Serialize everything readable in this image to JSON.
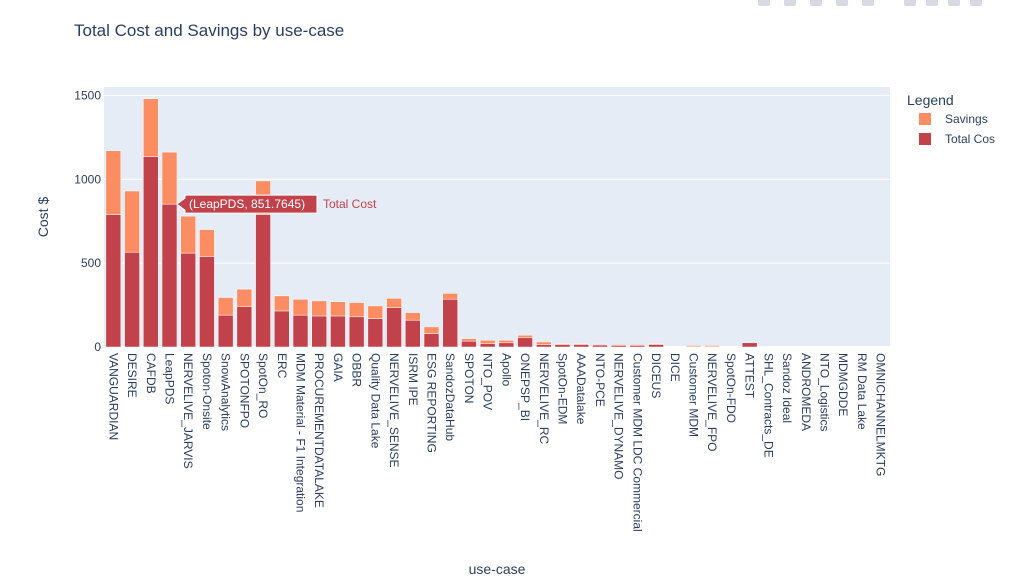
{
  "toolbar": {
    "icons": [
      "camera-icon",
      "zoom-icon",
      "pan-icon",
      "box-select-icon",
      "lasso-icon",
      "zoom-in-icon",
      "zoom-out-icon",
      "autoscale-icon",
      "reset-axes-icon"
    ]
  },
  "chart_data": {
    "type": "bar",
    "barmode": "stack",
    "title": "Total Cost and Savings by use-case",
    "xlabel": "use-case",
    "ylabel": "Cost $",
    "ylim": [
      0,
      1550
    ],
    "yticks": [
      0,
      500,
      1000,
      1500
    ],
    "ytick_labels": [
      "0",
      "500",
      "1000",
      "1500"
    ],
    "grid": true,
    "legend": {
      "title": "Legend",
      "position": "right"
    },
    "categories": [
      "VANGUARDIAN",
      "DESIRE",
      "CAFDB",
      "LeapPDS",
      "NERVELIVE_JARVIS",
      "Spoton-Onsite",
      "SnowAnalytics",
      "SPOTONFPO",
      "SpotOn_RO",
      "ERC",
      "MDM Material - F1 Integration",
      "PROCUREMENTDATALAKE",
      "GAIA",
      "OBBR",
      "Quality Data Lake",
      "NERVELIVE_SENSE",
      "ISRM IPE",
      "ESG REPORTING",
      "SandozDataHub",
      "SPOTON",
      "NTO_POV",
      "Apollo",
      "ONEPSP_BI",
      "NERVELIVE_RC",
      "SpotOn-EDM",
      "AAADatalake",
      "NTO-PCE",
      "NERVELIVE_DYNAMO",
      "Customer MDM LDC Commercial",
      "DICEUS",
      "DICE",
      "Customer MDM",
      "NERVELIVE_FPO",
      "SpotOn-FDO",
      "ATTEST",
      "SHL_Contracts_DE",
      "Sandoz Ideal",
      "ANDROMEDA",
      "NTO_Logistics",
      "MDMGDDE",
      "RM Data Lake",
      "OMNICHANNELMKTG"
    ],
    "series": [
      {
        "name": "Total Cos",
        "color": "#c1424b",
        "values": [
          790,
          565,
          1135,
          851.7645,
          560,
          540,
          190,
          240,
          790,
          215,
          190,
          185,
          185,
          180,
          170,
          235,
          160,
          80,
          285,
          35,
          20,
          25,
          55,
          15,
          15,
          15,
          12,
          10,
          10,
          15,
          0,
          5,
          5,
          0,
          25,
          0,
          0,
          0,
          0,
          0,
          0,
          0
        ]
      },
      {
        "name": "Savings",
        "color": "#fc8d62",
        "values": [
          380,
          365,
          345,
          310,
          220,
          160,
          105,
          105,
          200,
          90,
          95,
          90,
          85,
          85,
          75,
          55,
          45,
          40,
          35,
          15,
          20,
          15,
          15,
          15,
          5,
          5,
          5,
          5,
          5,
          5,
          0,
          5,
          5,
          0,
          0,
          0,
          0,
          0,
          0,
          0,
          0,
          0
        ]
      }
    ],
    "hover": {
      "category_index": 3,
      "series": "Total Cost",
      "label": "(LeapPDS, 851.7645)",
      "trace_name": "Total Cost",
      "color": "#c1424b"
    }
  }
}
